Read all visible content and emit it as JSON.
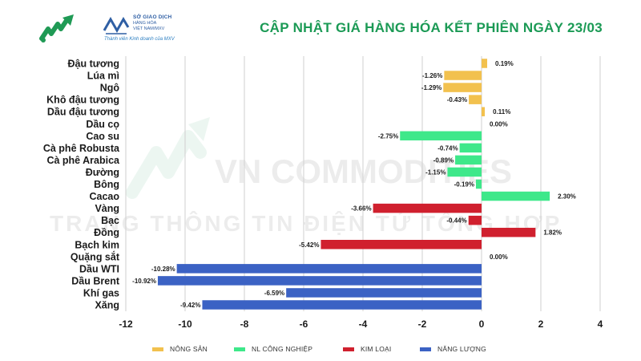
{
  "header": {
    "title": "CẬP NHẬT GIÁ HÀNG HÓA KẾT PHIÊN NGÀY 23/03",
    "brand_line1": "SỞ GIAO DỊCH",
    "brand_line2": "HÀNG HÓA",
    "brand_line3": "VIỆT NAM/MXV",
    "brand_tagline": "Thành viên Kinh doanh của MXV"
  },
  "watermark": {
    "line1": "VN COMMODITIES",
    "line2": "TRANG THÔNG TIN ĐIỆN TỬ TỔNG HỢP"
  },
  "colors": {
    "nong_san": "#f2c14e",
    "nl_cong_nghiep": "#3ee88a",
    "kim_loai": "#d0202e",
    "nang_luong": "#3b62c4",
    "grid": "#cfcfcf"
  },
  "chart_data": {
    "type": "bar",
    "orientation": "horizontal",
    "title": "",
    "xlabel": "",
    "ylabel": "",
    "xlim": [
      -12,
      4
    ],
    "xticks": [
      -12,
      -10,
      -8,
      -6,
      -4,
      -2,
      0,
      2,
      4
    ],
    "grid": true,
    "legend_position": "bottom",
    "categories": [
      "Đậu tương",
      "Lúa mì",
      "Ngô",
      "Khô đậu tương",
      "Dầu đậu tương",
      "Dầu cọ",
      "Cao su",
      "Cà phê Robusta",
      "Cà phê Arabica",
      "Đường",
      "Bông",
      "Cacao",
      "Vàng",
      "Bạc",
      "Đồng",
      "Bạch kim",
      "Quặng sắt",
      "Dầu WTI",
      "Dầu Brent",
      "Khí gas",
      "Xăng"
    ],
    "values": [
      0.19,
      -1.26,
      -1.29,
      -0.43,
      0.11,
      0.0,
      -2.75,
      -0.74,
      -0.89,
      -1.15,
      -0.19,
      2.3,
      -3.66,
      -0.44,
      1.82,
      -5.42,
      0.0,
      -10.28,
      -10.92,
      -6.59,
      -9.42
    ],
    "labels": [
      "0.19%",
      "-1.26%",
      "-1.29%",
      "-0.43%",
      "0.11%",
      "0.00%",
      "-2.75%",
      "-0.74%",
      "-0.89%",
      "-1.15%",
      "-0.19%",
      "2.30%",
      "-3.66%",
      "-0.44%",
      "1.82%",
      "-5.42%",
      "0.00%",
      "-10.28%",
      "-10.92%",
      "-6.59%",
      "-9.42%"
    ],
    "groups": [
      "nong_san",
      "nong_san",
      "nong_san",
      "nong_san",
      "nong_san",
      "nl_cong_nghiep",
      "nl_cong_nghiep",
      "nl_cong_nghiep",
      "nl_cong_nghiep",
      "nl_cong_nghiep",
      "nl_cong_nghiep",
      "nl_cong_nghiep",
      "kim_loai",
      "kim_loai",
      "kim_loai",
      "kim_loai",
      "kim_loai",
      "nang_luong",
      "nang_luong",
      "nang_luong",
      "nang_luong"
    ],
    "legend": [
      {
        "key": "nong_san",
        "name": "NÔNG SẢN"
      },
      {
        "key": "nl_cong_nghiep",
        "name": "NL CÔNG NGHIỆP"
      },
      {
        "key": "kim_loai",
        "name": "KIM LOẠI"
      },
      {
        "key": "nang_luong",
        "name": "NĂNG LƯỢNG"
      }
    ]
  }
}
